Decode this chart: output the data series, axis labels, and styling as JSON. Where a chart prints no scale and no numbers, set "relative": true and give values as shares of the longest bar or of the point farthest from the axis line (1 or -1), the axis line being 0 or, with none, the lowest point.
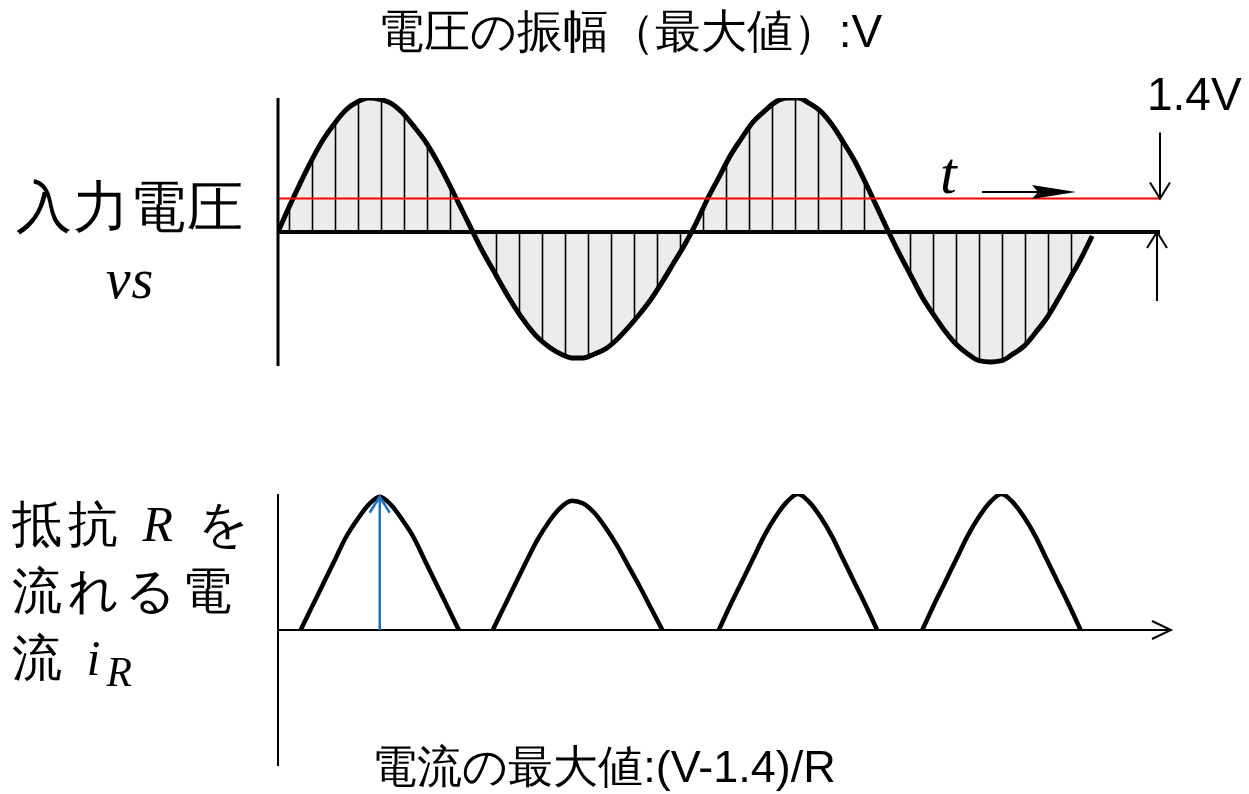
{
  "chart_data": [
    {
      "type": "area",
      "title": "電圧の振幅（最大値）:V",
      "ylabel": "入力電圧 vs",
      "xlabel": "t",
      "relative": true,
      "color": "#000000",
      "tick_labels": false,
      "categories": [
        null,
        null,
        null,
        null,
        null,
        null,
        null,
        null,
        null,
        null,
        null,
        null,
        null,
        null,
        null,
        null,
        null,
        null,
        null,
        null,
        null,
        null,
        null,
        null,
        null,
        null,
        null,
        null,
        null,
        null,
        null,
        null,
        null,
        null,
        null,
        null,
        null,
        null,
        null,
        null,
        null,
        null,
        null,
        null,
        null,
        null,
        null,
        null,
        null,
        null,
        null,
        null,
        null,
        null,
        null,
        null,
        null,
        null,
        null,
        null,
        null,
        null,
        null,
        null,
        null,
        null,
        null,
        null,
        null,
        null,
        null,
        null,
        null,
        null,
        null,
        null,
        null,
        null,
        null
      ],
      "values": [
        0,
        0.19,
        0.37,
        0.54,
        0.69,
        0.81,
        0.91,
        0.97,
        1,
        0.99,
        0.96,
        0.89,
        0.79,
        0.68,
        0.54,
        0.38,
        0.21,
        0.04,
        -0.13,
        -0.28,
        -0.43,
        -0.57,
        -0.69,
        -0.79,
        -0.86,
        -0.91,
        -0.94,
        -0.94,
        -0.91,
        -0.87,
        -0.8,
        -0.71,
        -0.61,
        -0.5,
        -0.37,
        -0.23,
        -0.09,
        0.07,
        0.25,
        0.41,
        0.57,
        0.7,
        0.82,
        0.9,
        0.97,
        1,
        1,
        0.96,
        0.9,
        0.8,
        0.67,
        0.53,
        0.36,
        0.18,
        0,
        -0.17,
        -0.33,
        -0.49,
        -0.62,
        -0.74,
        -0.84,
        -0.91,
        -0.96,
        -0.97,
        -0.96,
        -0.91,
        -0.85,
        -0.75,
        -0.64,
        -0.5,
        -0.35,
        -0.2,
        -0.03,
        null,
        null,
        null,
        null,
        null,
        null
      ],
      "ref_lines": [
        {
          "axis": "y",
          "value": 0.25,
          "label": "1.4V",
          "color": "#ff0000"
        }
      ]
    },
    {
      "type": "line",
      "ylabel": "抵抗 R を流れる電流 i$_{R}$",
      "annotations": [
        "電流の最大値:(V-1.4)/R"
      ],
      "relative": true,
      "tick_labels": false,
      "categories": [
        null,
        null,
        null,
        null,
        null,
        null,
        null,
        null,
        null,
        null,
        null,
        null,
        null,
        null,
        null,
        null,
        null,
        null,
        null,
        null,
        null,
        null,
        null,
        null,
        null,
        null,
        null,
        null,
        null,
        null,
        null,
        null,
        null,
        null,
        null,
        null,
        null,
        null,
        null,
        null,
        null,
        null,
        null,
        null,
        null,
        null,
        null,
        null,
        null,
        null,
        null,
        null,
        null,
        null,
        null,
        null,
        null,
        null,
        null,
        null,
        null,
        null,
        null,
        null,
        null,
        null,
        null,
        null,
        null,
        null,
        null,
        null,
        null,
        null,
        null,
        null,
        null,
        null,
        null,
        null
      ],
      "series": [
        {
          "color": "#000000",
          "values": [
            null,
            null,
            0,
            0.17,
            0.34,
            0.51,
            0.68,
            0.81,
            0.92,
            0.98,
            0.92,
            0.81,
            0.68,
            0.51,
            0.34,
            0.17,
            0,
            null,
            null,
            null,
            null,
            null,
            null,
            null,
            null,
            null,
            null,
            null,
            null,
            null,
            null,
            null,
            null,
            null,
            null,
            null,
            null,
            null,
            null,
            null,
            null,
            null,
            null,
            null,
            null,
            null,
            null,
            null,
            null,
            null,
            null,
            null,
            null,
            null,
            null,
            null,
            null,
            null,
            null,
            null,
            null,
            null,
            null,
            null,
            null,
            null,
            null,
            null,
            null,
            null,
            null,
            null,
            null,
            null,
            null,
            null,
            null,
            null,
            null,
            null
          ]
        },
        {
          "color": "#000000",
          "values": [
            null,
            null,
            null,
            null,
            null,
            null,
            null,
            null,
            null,
            null,
            null,
            null,
            null,
            null,
            null,
            null,
            null,
            null,
            null,
            0,
            0.17,
            0.34,
            0.51,
            0.67,
            0.8,
            0.9,
            0.95,
            0.93,
            0.86,
            0.75,
            0.62,
            0.47,
            0.32,
            0.16,
            0,
            null,
            null,
            null,
            null,
            null,
            null,
            null,
            null,
            null,
            null,
            null,
            null,
            null,
            null,
            null,
            null,
            null,
            null,
            null,
            null,
            null,
            null,
            null,
            null,
            null,
            null,
            null,
            null,
            null,
            null,
            null,
            null,
            null,
            null,
            null,
            null,
            null,
            null,
            null,
            null,
            null,
            null,
            null,
            null,
            null
          ]
        },
        {
          "color": "#000000",
          "values": [
            null,
            null,
            null,
            null,
            null,
            null,
            null,
            null,
            null,
            null,
            null,
            null,
            null,
            null,
            null,
            null,
            null,
            null,
            null,
            null,
            null,
            null,
            null,
            null,
            null,
            null,
            null,
            null,
            null,
            null,
            null,
            null,
            null,
            null,
            null,
            null,
            null,
            null,
            null,
            0,
            0.18,
            0.35,
            0.52,
            0.69,
            0.83,
            0.94,
            1,
            0.94,
            0.83,
            0.69,
            0.52,
            0.35,
            0.18,
            0,
            null,
            null,
            null,
            null,
            null,
            null,
            null,
            null,
            null,
            null,
            null,
            null,
            null,
            null,
            null,
            null,
            null,
            null,
            null,
            null,
            null,
            null,
            null,
            null,
            null,
            null
          ]
        },
        {
          "color": "#000000",
          "values": [
            null,
            null,
            null,
            null,
            null,
            null,
            null,
            null,
            null,
            null,
            null,
            null,
            null,
            null,
            null,
            null,
            null,
            null,
            null,
            null,
            null,
            null,
            null,
            null,
            null,
            null,
            null,
            null,
            null,
            null,
            null,
            null,
            null,
            null,
            null,
            null,
            null,
            null,
            null,
            null,
            null,
            null,
            null,
            null,
            null,
            null,
            null,
            null,
            null,
            null,
            null,
            null,
            null,
            null,
            null,
            null,
            null,
            0,
            0.18,
            0.35,
            0.52,
            0.69,
            0.83,
            0.94,
            1,
            0.94,
            0.83,
            0.69,
            0.52,
            0.35,
            0.18,
            0,
            null,
            null,
            null,
            null,
            null,
            null,
            null,
            null
          ]
        }
      ]
    }
  ]
}
